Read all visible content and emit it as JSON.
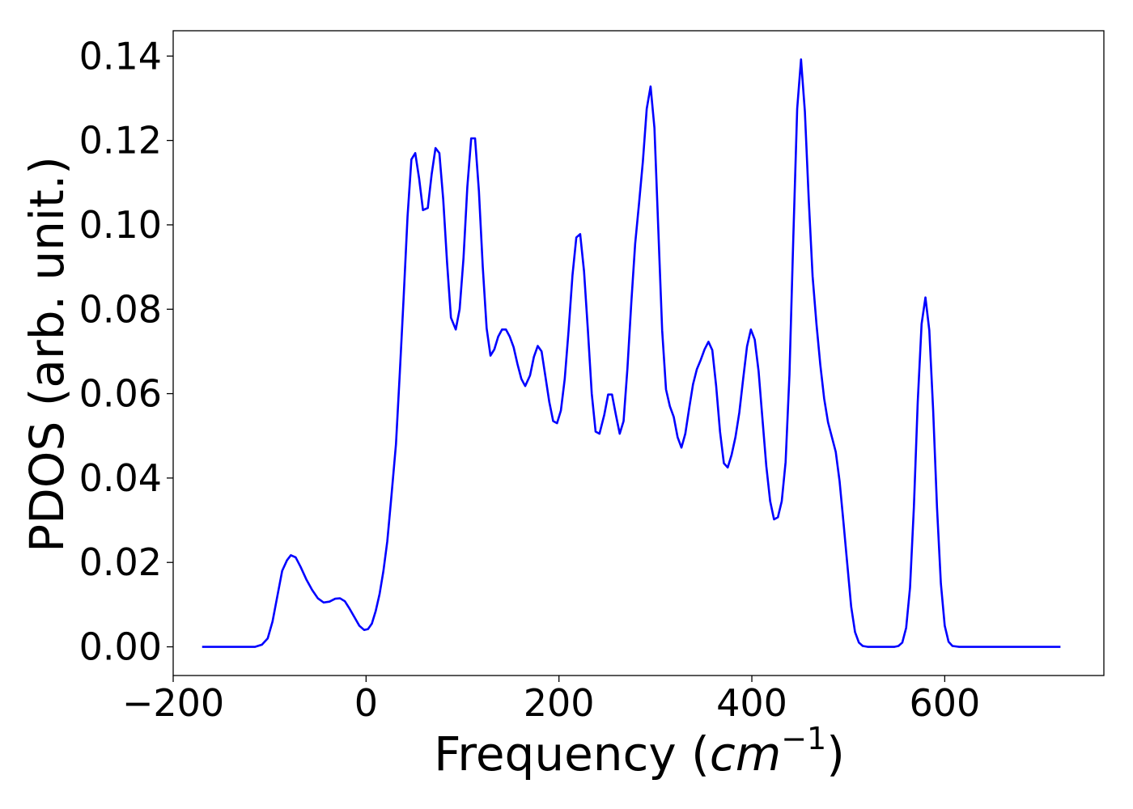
{
  "colors": {
    "line": "#0000ff",
    "axes": "#000000",
    "background": "#ffffff"
  },
  "chart_data": {
    "type": "line",
    "title": "",
    "xlabel_prefix": "Frequency (",
    "xlabel_unit": "cm",
    "xlabel_exp": "−1",
    "xlabel_suffix": ")",
    "ylabel": "PDOS (arb. unit.)",
    "xlim": [
      -200,
      765
    ],
    "ylim": [
      -0.0068,
      0.146
    ],
    "x_ticks": [
      -200,
      0,
      200,
      400,
      600
    ],
    "x_tick_labels": [
      "−200",
      "0",
      "200",
      "400",
      "600"
    ],
    "y_ticks": [
      0.0,
      0.02,
      0.04,
      0.06,
      0.08,
      0.1,
      0.12,
      0.14
    ],
    "y_tick_labels": [
      "0.00",
      "0.02",
      "0.04",
      "0.06",
      "0.08",
      "0.10",
      "0.12",
      "0.14"
    ],
    "grid": false,
    "legend": "none",
    "series": [
      {
        "color": "#0000ff",
        "points": [
          [
            -170,
            0.0
          ],
          [
            -150,
            0.0
          ],
          [
            -130,
            0.0
          ],
          [
            -115,
            0.0
          ],
          [
            -108,
            0.0005
          ],
          [
            -102,
            0.002
          ],
          [
            -97,
            0.006
          ],
          [
            -92,
            0.012
          ],
          [
            -87,
            0.018
          ],
          [
            -82,
            0.0205
          ],
          [
            -78,
            0.0217
          ],
          [
            -73,
            0.0212
          ],
          [
            -68,
            0.019
          ],
          [
            -62,
            0.016
          ],
          [
            -56,
            0.0135
          ],
          [
            -50,
            0.0115
          ],
          [
            -44,
            0.0105
          ],
          [
            -38,
            0.0107
          ],
          [
            -32,
            0.0114
          ],
          [
            -27,
            0.0115
          ],
          [
            -22,
            0.0108
          ],
          [
            -17,
            0.009
          ],
          [
            -12,
            0.007
          ],
          [
            -7,
            0.005
          ],
          [
            -2,
            0.004
          ],
          [
            2,
            0.0042
          ],
          [
            6,
            0.0055
          ],
          [
            10,
            0.0085
          ],
          [
            14,
            0.0125
          ],
          [
            18,
            0.018
          ],
          [
            22,
            0.025
          ],
          [
            26,
            0.035
          ],
          [
            31,
            0.048
          ],
          [
            35,
            0.065
          ],
          [
            39,
            0.083
          ],
          [
            43,
            0.102
          ],
          [
            47,
            0.1155
          ],
          [
            51,
            0.117
          ],
          [
            55,
            0.111
          ],
          [
            59,
            0.1035
          ],
          [
            64,
            0.104
          ],
          [
            68,
            0.112
          ],
          [
            72,
            0.1182
          ],
          [
            76,
            0.117
          ],
          [
            80,
            0.106
          ],
          [
            84,
            0.091
          ],
          [
            88,
            0.078
          ],
          [
            93,
            0.0752
          ],
          [
            97,
            0.08
          ],
          [
            101,
            0.092
          ],
          [
            105,
            0.109
          ],
          [
            109,
            0.1205
          ],
          [
            113,
            0.1205
          ],
          [
            117,
            0.108
          ],
          [
            121,
            0.09
          ],
          [
            125,
            0.0755
          ],
          [
            129,
            0.069
          ],
          [
            133,
            0.0705
          ],
          [
            137,
            0.0735
          ],
          [
            141,
            0.0752
          ],
          [
            145,
            0.0752
          ],
          [
            149,
            0.0735
          ],
          [
            153,
            0.071
          ],
          [
            157,
            0.067
          ],
          [
            161,
            0.0635
          ],
          [
            165,
            0.0618
          ],
          [
            170,
            0.0643
          ],
          [
            174,
            0.0687
          ],
          [
            178,
            0.0713
          ],
          [
            182,
            0.07
          ],
          [
            186,
            0.064
          ],
          [
            190,
            0.058
          ],
          [
            194,
            0.0535
          ],
          [
            198,
            0.053
          ],
          [
            202,
            0.056
          ],
          [
            206,
            0.0635
          ],
          [
            210,
            0.075
          ],
          [
            214,
            0.088
          ],
          [
            218,
            0.097
          ],
          [
            222,
            0.0978
          ],
          [
            226,
            0.089
          ],
          [
            230,
            0.075
          ],
          [
            234,
            0.06
          ],
          [
            238,
            0.051
          ],
          [
            242,
            0.0505
          ],
          [
            247,
            0.055
          ],
          [
            251,
            0.0598
          ],
          [
            255,
            0.0598
          ],
          [
            259,
            0.055
          ],
          [
            263,
            0.0505
          ],
          [
            267,
            0.0535
          ],
          [
            271,
            0.066
          ],
          [
            275,
            0.0815
          ],
          [
            279,
            0.0955
          ],
          [
            283,
            0.105
          ],
          [
            287,
            0.115
          ],
          [
            291,
            0.1275
          ],
          [
            295,
            0.1328
          ],
          [
            299,
            0.123
          ],
          [
            303,
            0.099
          ],
          [
            307,
            0.075
          ],
          [
            311,
            0.061
          ],
          [
            315,
            0.057
          ],
          [
            319,
            0.0545
          ],
          [
            323,
            0.0497
          ],
          [
            327,
            0.0472
          ],
          [
            331,
            0.0505
          ],
          [
            335,
            0.0565
          ],
          [
            339,
            0.0622
          ],
          [
            343,
            0.0658
          ],
          [
            347,
            0.068
          ],
          [
            351,
            0.0705
          ],
          [
            355,
            0.0723
          ],
          [
            359,
            0.0703
          ],
          [
            363,
            0.0618
          ],
          [
            367,
            0.051
          ],
          [
            371,
            0.0435
          ],
          [
            375,
            0.0425
          ],
          [
            379,
            0.0455
          ],
          [
            383,
            0.0497
          ],
          [
            387,
            0.0555
          ],
          [
            391,
            0.0635
          ],
          [
            395,
            0.0712
          ],
          [
            399,
            0.0752
          ],
          [
            403,
            0.0728
          ],
          [
            407,
            0.0653
          ],
          [
            411,
            0.054
          ],
          [
            415,
            0.0428
          ],
          [
            419,
            0.0345
          ],
          [
            423,
            0.0302
          ],
          [
            427,
            0.0307
          ],
          [
            431,
            0.0345
          ],
          [
            435,
            0.0438
          ],
          [
            439,
            0.0645
          ],
          [
            443,
            0.097
          ],
          [
            447,
            0.1275
          ],
          [
            451,
            0.1392
          ],
          [
            455,
            0.1268
          ],
          [
            459,
            0.106
          ],
          [
            463,
            0.0878
          ],
          [
            467,
            0.0765
          ],
          [
            471,
            0.0668
          ],
          [
            475,
            0.0588
          ],
          [
            479,
            0.0532
          ],
          [
            483,
            0.0497
          ],
          [
            487,
            0.0462
          ],
          [
            491,
            0.0392
          ],
          [
            495,
            0.0295
          ],
          [
            499,
            0.0195
          ],
          [
            503,
            0.0095
          ],
          [
            507,
            0.0035
          ],
          [
            511,
            0.001
          ],
          [
            515,
            0.0002
          ],
          [
            520,
            0.0
          ],
          [
            530,
            0.0
          ],
          [
            540,
            0.0
          ],
          [
            548,
            0.0
          ],
          [
            552,
            0.0002
          ],
          [
            556,
            0.001
          ],
          [
            560,
            0.0045
          ],
          [
            564,
            0.014
          ],
          [
            568,
            0.033
          ],
          [
            572,
            0.058
          ],
          [
            576,
            0.0765
          ],
          [
            580,
            0.0828
          ],
          [
            584,
            0.075
          ],
          [
            588,
            0.056
          ],
          [
            592,
            0.033
          ],
          [
            596,
            0.015
          ],
          [
            600,
            0.005
          ],
          [
            604,
            0.0012
          ],
          [
            608,
            0.0002
          ],
          [
            615,
            0.0
          ],
          [
            630,
            0.0
          ],
          [
            650,
            0.0
          ],
          [
            670,
            0.0
          ],
          [
            690,
            0.0
          ],
          [
            710,
            0.0
          ],
          [
            720,
            0.0
          ]
        ]
      }
    ]
  }
}
